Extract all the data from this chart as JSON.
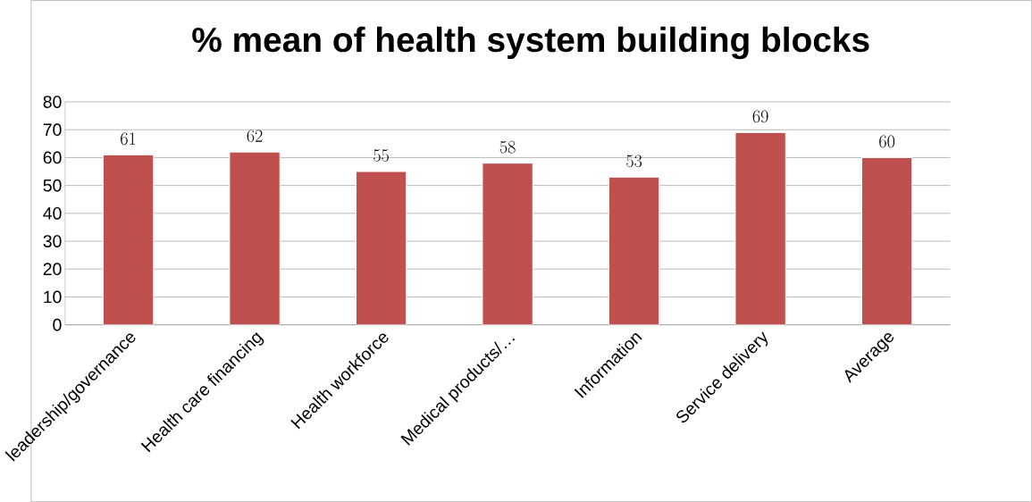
{
  "chart_data": {
    "type": "bar",
    "title": "% mean of health system building blocks",
    "categories": [
      "leadership/governance",
      "Health care financing",
      "Health workforce",
      "Medical products/…",
      "Information",
      "Service delivery",
      "Average"
    ],
    "values": [
      61,
      62,
      55,
      58,
      53,
      69,
      60
    ],
    "color": "#c0504d",
    "ylim": [
      0,
      80
    ],
    "yticks": [
      0,
      10,
      20,
      30,
      40,
      50,
      60,
      70,
      80
    ],
    "grid": "y",
    "data_labels": true
  }
}
